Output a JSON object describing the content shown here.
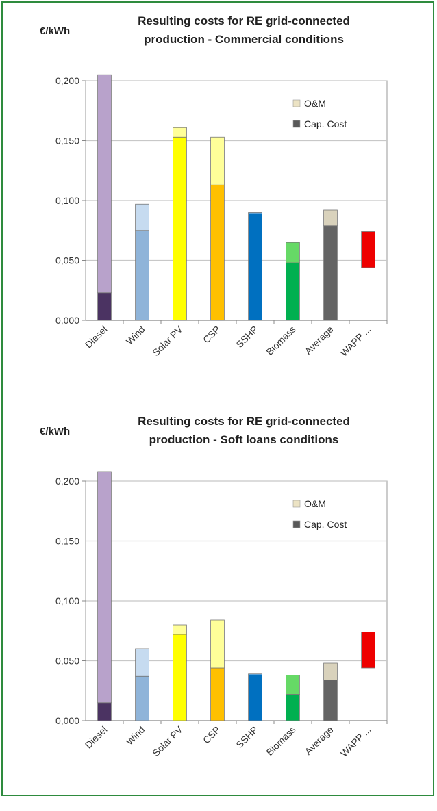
{
  "border_color": "#2e8b3e",
  "chart_data": [
    {
      "type": "bar",
      "stacked": true,
      "title_lines": [
        "Resulting costs for RE grid-connected",
        "production - Commercial conditions"
      ],
      "ylabel": "€/kWh",
      "ylim": [
        0,
        0.2
      ],
      "yticks": [
        "0,000",
        "0,050",
        "0,100",
        "0,150",
        "0,200"
      ],
      "grid": true,
      "legend_position": "top-right",
      "categories": [
        "Diesel",
        "Wind",
        "Solar PV",
        "CSP",
        "SSHP",
        "Biomass",
        "Average",
        "WAPP ..."
      ],
      "series": [
        {
          "name": "Cap. Cost",
          "values": [
            0.023,
            0.075,
            0.153,
            0.113,
            0.089,
            0.048,
            0.079,
            0.044
          ]
        },
        {
          "name": "O&M",
          "values": [
            0.182,
            0.022,
            0.008,
            0.04,
            0.001,
            0.017,
            0.013,
            0.03
          ]
        }
      ],
      "colors": {
        "cap": [
          "#4b3362",
          "#8fb4d9",
          "#ffff00",
          "#ffc000",
          "#0070c0",
          "#00b050",
          "#646464",
          "#ffffff"
        ],
        "om": [
          "#b8a2cb",
          "#c6dbf0",
          "#ffff99",
          "#ffff99",
          "#5aa9e6",
          "#66d966",
          "#d9d2bc",
          "#ee0000"
        ]
      }
    },
    {
      "type": "bar",
      "stacked": true,
      "title_lines": [
        "Resulting costs for RE grid-connected",
        "production - Soft loans conditions"
      ],
      "ylabel": "€/kWh",
      "ylim": [
        0,
        0.2
      ],
      "yticks": [
        "0,000",
        "0,050",
        "0,100",
        "0,150",
        "0,200"
      ],
      "grid": true,
      "legend_position": "top-right",
      "categories": [
        "Diesel",
        "Wind",
        "Solar PV",
        "CSP",
        "SSHP",
        "Biomass",
        "Average",
        "WAPP ..."
      ],
      "series": [
        {
          "name": "Cap. Cost",
          "values": [
            0.015,
            0.037,
            0.072,
            0.044,
            0.038,
            0.022,
            0.034,
            0.044
          ]
        },
        {
          "name": "O&M",
          "values": [
            0.193,
            0.023,
            0.008,
            0.04,
            0.001,
            0.016,
            0.014,
            0.03
          ]
        }
      ],
      "colors": {
        "cap": [
          "#4b3362",
          "#8fb4d9",
          "#ffff00",
          "#ffc000",
          "#0070c0",
          "#00b050",
          "#646464",
          "#ffffff"
        ],
        "om": [
          "#b8a2cb",
          "#c6dbf0",
          "#ffff99",
          "#ffff99",
          "#5aa9e6",
          "#66d966",
          "#d9d2bc",
          "#ee0000"
        ]
      }
    }
  ],
  "legend_colors": {
    "om": "#ece3c4",
    "cap": "#595959"
  }
}
